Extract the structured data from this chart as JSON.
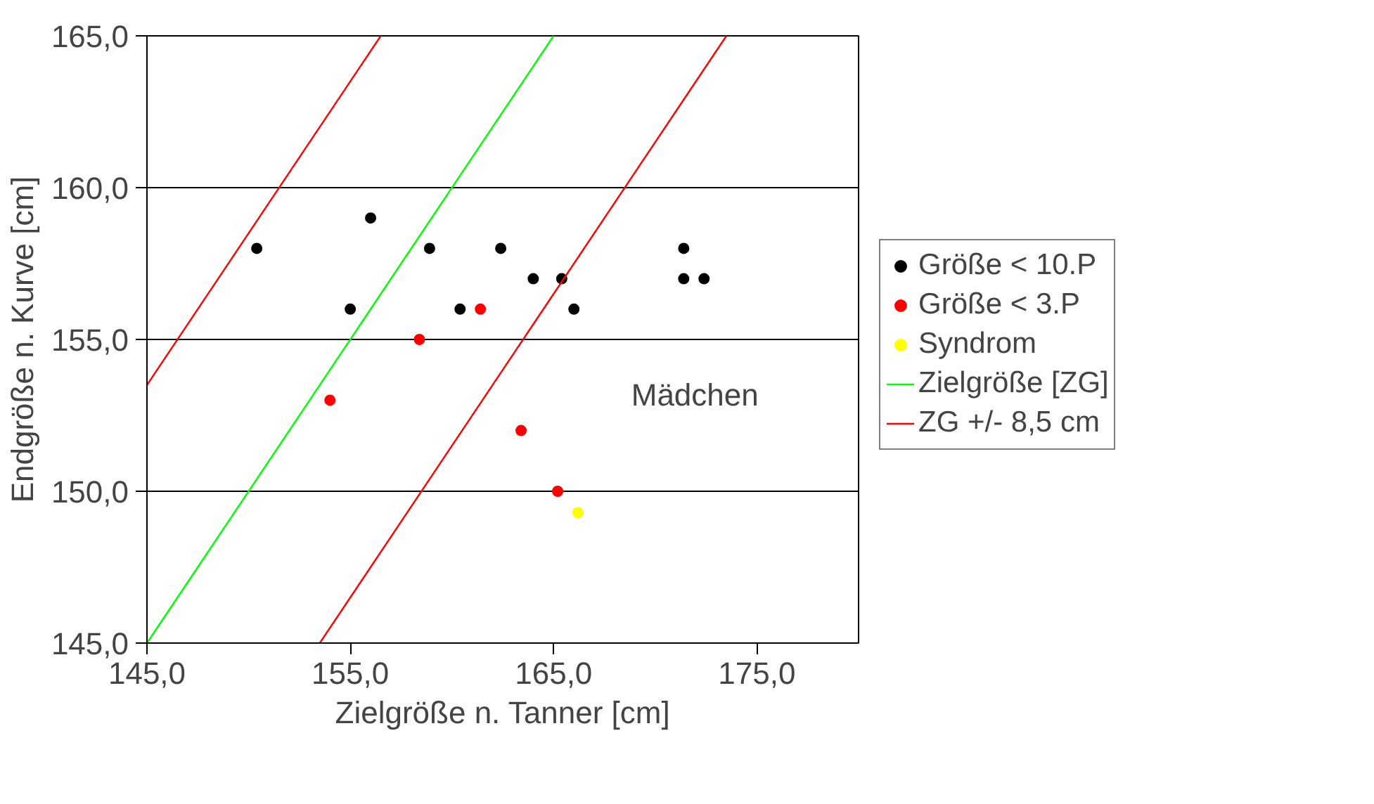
{
  "chart_data": {
    "type": "scatter",
    "xlabel": "Zielgröße n. Tanner [cm]",
    "ylabel": "Endgröße n. Kurve [cm]",
    "xlim": [
      145,
      180
    ],
    "ylim": [
      145,
      165
    ],
    "xticks": [
      {
        "value": 145,
        "label": "145,0"
      },
      {
        "value": 155,
        "label": "155,0"
      },
      {
        "value": 165,
        "label": "165,0"
      },
      {
        "value": 175,
        "label": "175,0"
      }
    ],
    "yticks": [
      {
        "value": 145,
        "label": "145,0"
      },
      {
        "value": 150,
        "label": "150,0"
      },
      {
        "value": 155,
        "label": "155,0"
      },
      {
        "value": 160,
        "label": "160,0"
      },
      {
        "value": 165,
        "label": "165,0"
      }
    ],
    "grid": "y",
    "legend": "right",
    "marker": "circle",
    "annotations": [
      "Mädchen"
    ],
    "series": [
      {
        "name": "Größe < 10.P",
        "color": "#000000",
        "x": [
          150.4,
          156.0,
          155.0,
          158.9,
          160.4,
          162.4,
          164.0,
          165.4,
          166.0,
          171.4,
          171.4,
          172.4
        ],
        "values": [
          158,
          159,
          156,
          158,
          156,
          158,
          157,
          157,
          156,
          158,
          157,
          157
        ]
      },
      {
        "name": "Größe < 3.P",
        "color": "#ff0000",
        "x": [
          154.0,
          158.4,
          161.4,
          163.4,
          165.2
        ],
        "values": [
          153,
          155,
          156,
          152,
          150
        ]
      },
      {
        "name": "Syndrom",
        "color": "#ffff00",
        "x": [
          166.2
        ],
        "values": [
          149.3
        ]
      },
      {
        "name": "Zielgröße [ZG]",
        "type": "line",
        "marker": "none",
        "color": "#00ff00",
        "x": [
          145,
          165
        ],
        "values": [
          145,
          165
        ]
      },
      {
        "name": "ZG +/- 8,5 cm",
        "type": "line",
        "marker": "none",
        "color": "#ff0000",
        "x": [
          145,
          156.5
        ],
        "values": [
          153.5,
          165
        ]
      },
      {
        "type": "line",
        "marker": "none",
        "color": "#ff0000",
        "x": [
          153.5,
          173.5
        ],
        "values": [
          145,
          165
        ]
      }
    ]
  }
}
